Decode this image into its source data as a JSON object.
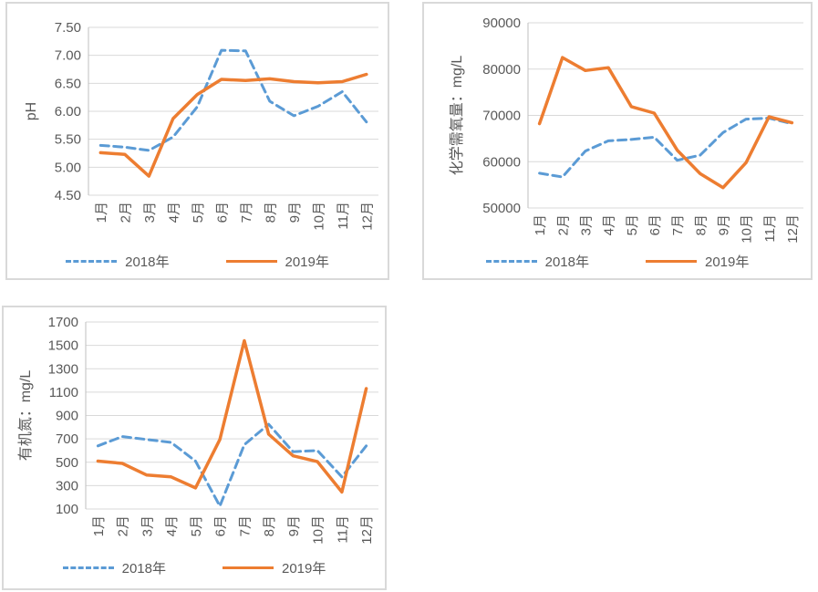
{
  "colors": {
    "series_2018": "#5B9BD5",
    "series_2019": "#ED7D31",
    "gridline": "#D9D9D9",
    "axis_line": "#BFBFBF",
    "axis_text": "#595959",
    "chart_border": "#D9D9D9"
  },
  "chart_data": [
    {
      "type": "line",
      "title": "",
      "xlabel": "",
      "ylabel": "pH",
      "categories": [
        "1月",
        "2月",
        "3月",
        "4月",
        "5月",
        "6月",
        "7月",
        "8月",
        "9月",
        "10月",
        "11月",
        "12月"
      ],
      "ylim": [
        4.5,
        7.5
      ],
      "ytick_values": [
        7.5,
        7.0,
        6.5,
        6.0,
        5.5,
        5.0,
        4.5
      ],
      "ytick_labels": [
        "7.50",
        "7.00",
        "6.50",
        "6.00",
        "5.50",
        "5.00",
        "4.50"
      ],
      "grid": true,
      "legend_position": "bottom",
      "series": [
        {
          "name": "2018年",
          "style": "dashed",
          "color": "#5B9BD5",
          "values": [
            5.39,
            5.36,
            5.3,
            5.54,
            6.08,
            7.09,
            7.08,
            6.18,
            5.92,
            6.09,
            6.35,
            5.81
          ]
        },
        {
          "name": "2019年",
          "style": "solid",
          "color": "#ED7D31",
          "values": [
            5.26,
            5.23,
            4.84,
            5.87,
            6.3,
            6.57,
            6.55,
            6.58,
            6.53,
            6.51,
            6.53,
            6.66
          ]
        }
      ]
    },
    {
      "type": "line",
      "title": "",
      "xlabel": "",
      "ylabel": "化学需氧量：mg/L",
      "categories": [
        "1月",
        "2月",
        "3月",
        "4月",
        "5月",
        "6月",
        "7月",
        "8月",
        "9月",
        "10月",
        "11月",
        "12月"
      ],
      "ylim": [
        50000,
        90000
      ],
      "ytick_values": [
        90000,
        80000,
        70000,
        60000,
        50000
      ],
      "ytick_labels": [
        "90000",
        "80000",
        "70000",
        "60000",
        "50000"
      ],
      "grid": true,
      "legend_position": "bottom",
      "series": [
        {
          "name": "2018年",
          "style": "dashed",
          "color": "#5B9BD5",
          "values": [
            57500,
            56700,
            62300,
            64500,
            64800,
            65300,
            60300,
            61400,
            66300,
            69200,
            69400,
            68200
          ]
        },
        {
          "name": "2019年",
          "style": "solid",
          "color": "#ED7D31",
          "values": [
            68200,
            82500,
            79700,
            80300,
            71900,
            70500,
            62500,
            57400,
            54400,
            59800,
            69700,
            68400
          ]
        }
      ]
    },
    {
      "type": "line",
      "title": "",
      "xlabel": "",
      "ylabel": "有机氮：mg/L",
      "categories": [
        "1月",
        "2月",
        "3月",
        "4月",
        "5月",
        "6月",
        "7月",
        "8月",
        "9月",
        "10月",
        "11月",
        "12月"
      ],
      "ylim": [
        100,
        1700
      ],
      "ytick_values": [
        1700,
        1500,
        1300,
        1100,
        900,
        700,
        500,
        300,
        100
      ],
      "ytick_labels": [
        "1700",
        "1500",
        "1300",
        "1100",
        "900",
        "700",
        "500",
        "300",
        "100"
      ],
      "grid": true,
      "legend_position": "bottom",
      "series": [
        {
          "name": "2018年",
          "style": "dashed",
          "color": "#5B9BD5",
          "values": [
            640,
            720,
            695,
            670,
            510,
            125,
            650,
            825,
            590,
            600,
            375,
            640
          ]
        },
        {
          "name": "2019年",
          "style": "solid",
          "color": "#ED7D31",
          "values": [
            510,
            490,
            390,
            375,
            280,
            695,
            1540,
            740,
            555,
            505,
            245,
            1130
          ]
        }
      ]
    }
  ]
}
